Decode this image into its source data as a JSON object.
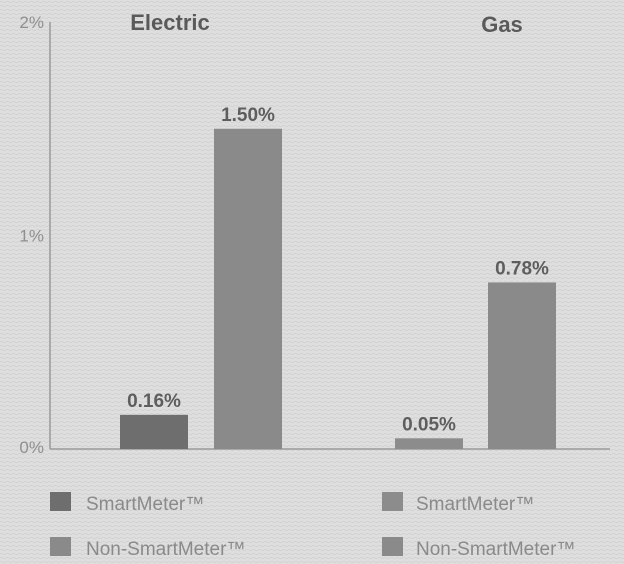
{
  "chart_data": {
    "type": "bar",
    "groups": [
      {
        "title": "Electric",
        "bars": [
          {
            "series": "SmartMeter™",
            "value": 0.16,
            "label": "0.16%"
          },
          {
            "series": "Non-SmartMeter™",
            "value": 1.5,
            "label": "1.50%"
          }
        ],
        "legend": [
          "SmartMeter™",
          "Non-SmartMeter™"
        ]
      },
      {
        "title": "Gas",
        "bars": [
          {
            "series": "SmartMeter™",
            "value": 0.05,
            "label": "0.05%"
          },
          {
            "series": "Non-SmartMeter™",
            "value": 0.78,
            "label": "0.78%"
          }
        ],
        "legend": [
          "SmartMeter™",
          "Non-SmartMeter™"
        ]
      }
    ],
    "y_ticks": [
      {
        "value": 0,
        "label": "0%"
      },
      {
        "value": 1,
        "label": "1%"
      },
      {
        "value": 2,
        "label": "2%"
      }
    ],
    "ylim": [
      0,
      2
    ],
    "colors": {
      "electric_smartmeter": "#6e6e6e",
      "electric_non_smartmeter": "#8a8a8a",
      "gas_smartmeter": "#8c8c8c",
      "gas_non_smartmeter": "#8a8a8a",
      "axis": "#9a9a9a"
    }
  }
}
